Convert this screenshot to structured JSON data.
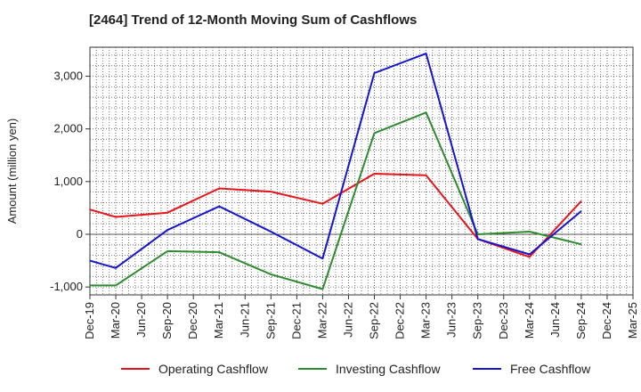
{
  "chart_data": {
    "type": "line",
    "title": "[2464]  Trend of 12-Month Moving Sum of Cashflows",
    "ylabel": "Amount (million yen)",
    "xlabel": "",
    "categories": [
      "Dec-19",
      "Mar-20",
      "Jun-20",
      "Sep-20",
      "Dec-20",
      "Mar-21",
      "Jun-21",
      "Sep-21",
      "Dec-21",
      "Mar-22",
      "Jun-22",
      "Sep-22",
      "Dec-22",
      "Mar-23",
      "Jun-23",
      "Sep-23",
      "Dec-23",
      "Mar-24",
      "Jun-24",
      "Sep-24",
      "Dec-24",
      "Mar-25"
    ],
    "ylim": [
      -1150,
      3550
    ],
    "yticks": [
      -1000,
      0,
      1000,
      2000,
      3000
    ],
    "ytick_labels": [
      "-1,000",
      "0",
      "1,000",
      "2,000",
      "3,000"
    ],
    "grid": true,
    "legend_position": "bottom",
    "series": [
      {
        "name": "Operating Cashflow",
        "color": "#e8141a",
        "values": [
          470,
          330,
          null,
          410,
          null,
          870,
          null,
          810,
          null,
          580,
          null,
          1150,
          null,
          1120,
          null,
          -90,
          null,
          -430,
          null,
          630,
          null,
          null
        ]
      },
      {
        "name": "Investing Cashflow",
        "color": "#2e8b2e",
        "values": [
          -970,
          -970,
          null,
          -320,
          null,
          -340,
          null,
          -760,
          null,
          -1040,
          null,
          1920,
          null,
          2310,
          null,
          0,
          null,
          50,
          null,
          -190,
          null,
          null
        ]
      },
      {
        "name": "Free Cashflow",
        "color": "#1414d2",
        "values": [
          -500,
          -640,
          null,
          80,
          null,
          530,
          null,
          50,
          null,
          -460,
          null,
          3060,
          null,
          3430,
          null,
          -90,
          null,
          -380,
          null,
          440,
          null,
          null
        ]
      }
    ]
  }
}
